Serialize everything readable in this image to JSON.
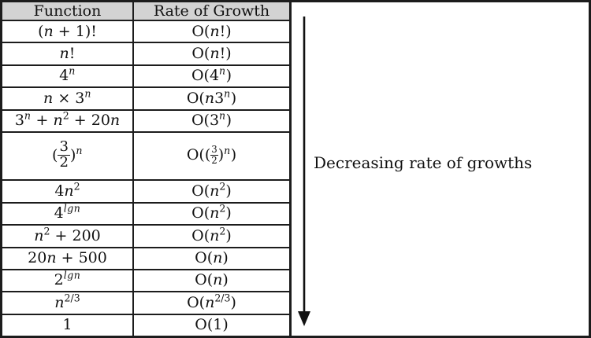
{
  "table": {
    "headers": [
      "Function",
      "Rate of Growth"
    ],
    "rows": [
      {
        "function": "(n + 1)!",
        "growth": "O(n!)",
        "function_html": "(<i>n</i> + 1)!",
        "growth_html": "O(<i>n</i>!)"
      },
      {
        "function": "n!",
        "growth": "O(n!)",
        "function_html": "<i>n</i>!",
        "growth_html": "O(<i>n</i>!)"
      },
      {
        "function": "4^n",
        "growth": "O(4^n)",
        "function_html": "4<sup><i>n</i></sup>",
        "growth_html": "O(4<sup><i>n</i></sup>)"
      },
      {
        "function": "n × 3^n",
        "growth": "O(n3^n)",
        "function_html": "<i>n</i> × 3<sup><i>n</i></sup>",
        "growth_html": "O(<i>n</i>3<sup><i>n</i></sup>)"
      },
      {
        "function": "3^n + n^2 + 20n",
        "growth": "O(3^n)",
        "function_html": "3<sup><i>n</i></sup> + <i>n</i><sup>2</sup> + 20<i>n</i>",
        "growth_html": "O(3<sup><i>n</i></sup>)"
      },
      {
        "function": "(3/2)^n",
        "growth": "O((3/2)^n)",
        "tall": true,
        "function_html": "(<span class=\"fr\"><span class=\"nu\">3</span><span>2</span></span>)<sup><i>n</i></sup>",
        "growth_html": "O((<span class=\"fr sm\"><span class=\"nu\">3</span><span>2</span></span>)<sup><i>n</i></sup>)"
      },
      {
        "function": "4n^2",
        "growth": "O(n^2)",
        "function_html": "4<i>n</i><sup>2</sup>",
        "growth_html": "O(<i>n</i><sup>2</sup>)"
      },
      {
        "function": "4^lgn",
        "growth": "O(n^2)",
        "function_html": "4<sup><i>lgn</i></sup>",
        "growth_html": "O(<i>n</i><sup>2</sup>)"
      },
      {
        "function": "n^2 + 200",
        "growth": "O(n^2)",
        "function_html": "<i>n</i><sup>2</sup> + 200",
        "growth_html": "O(<i>n</i><sup>2</sup>)"
      },
      {
        "function": "20n + 500",
        "growth": "O(n)",
        "function_html": "20<i>n</i> + 500",
        "growth_html": "O(<i>n</i>)"
      },
      {
        "function": "2^lgn",
        "growth": "O(n)",
        "function_html": "2<sup><i>lgn</i></sup>",
        "growth_html": "O(<i>n</i>)"
      },
      {
        "function": "n^(2/3)",
        "growth": "O(n^(2/3))",
        "function_html": "<i>n</i><sup>2/3</sup>",
        "growth_html": "O(<i>n</i><sup>2/3</sup>)"
      },
      {
        "function": "1",
        "growth": "O(1)",
        "function_html": "1",
        "growth_html": "O(1)"
      }
    ]
  },
  "annotation": {
    "label": "Decreasing rate of growths",
    "arrow_icon": "down-arrow"
  },
  "colors": {
    "border": "#1c1c1c",
    "header_bg": "#d3d3d3",
    "background": "#ffffff",
    "text": "#111111"
  }
}
